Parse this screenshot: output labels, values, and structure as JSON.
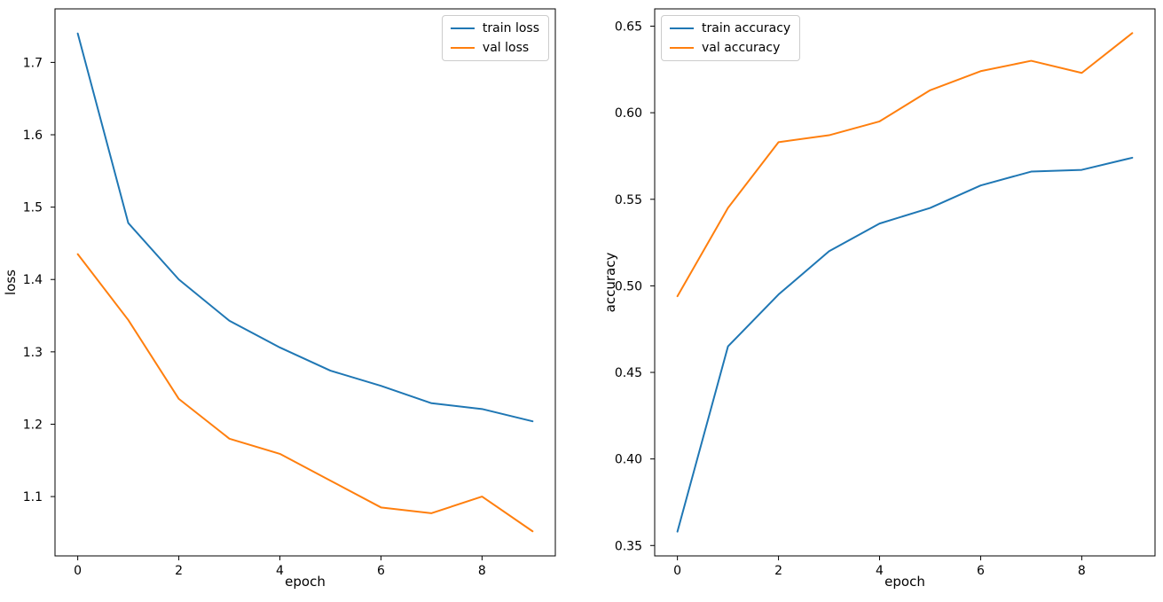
{
  "figure": {
    "background": "#ffffff",
    "text_color": "#000000",
    "spine_color": "#000000"
  },
  "chart_data": [
    {
      "type": "line",
      "title": "",
      "xlabel": "epoch",
      "ylabel": "loss",
      "x": [
        0,
        1,
        2,
        3,
        4,
        5,
        6,
        7,
        8,
        9
      ],
      "series": [
        {
          "name": "train loss",
          "color": "#1f77b4",
          "values": [
            1.74,
            1.478,
            1.4,
            1.343,
            1.306,
            1.274,
            1.253,
            1.229,
            1.221,
            1.204
          ]
        },
        {
          "name": "val loss",
          "color": "#ff7f0e",
          "values": [
            1.435,
            1.344,
            1.235,
            1.18,
            1.159,
            1.122,
            1.085,
            1.077,
            1.1,
            1.052
          ]
        }
      ],
      "xlim": [
        -0.45,
        9.45
      ],
      "ylim": [
        1.018,
        1.774
      ],
      "xticks": [
        0,
        2,
        4,
        6,
        8
      ],
      "xtick_labels": [
        "0",
        "2",
        "4",
        "6",
        "8"
      ],
      "yticks": [
        1.1,
        1.2,
        1.3,
        1.4,
        1.5,
        1.6,
        1.7
      ],
      "ytick_labels": [
        "1.1",
        "1.2",
        "1.3",
        "1.4",
        "1.5",
        "1.6",
        "1.7"
      ],
      "grid": false,
      "legend_position": "upper-right"
    },
    {
      "type": "line",
      "title": "",
      "xlabel": "epoch",
      "ylabel": "accuracy",
      "x": [
        0,
        1,
        2,
        3,
        4,
        5,
        6,
        7,
        8,
        9
      ],
      "series": [
        {
          "name": "train accuracy",
          "color": "#1f77b4",
          "values": [
            0.358,
            0.465,
            0.495,
            0.52,
            0.536,
            0.545,
            0.558,
            0.566,
            0.567,
            0.574
          ]
        },
        {
          "name": "val accuracy",
          "color": "#ff7f0e",
          "values": [
            0.494,
            0.545,
            0.583,
            0.587,
            0.595,
            0.613,
            0.624,
            0.63,
            0.623,
            0.646
          ]
        }
      ],
      "xlim": [
        -0.45,
        9.45
      ],
      "ylim": [
        0.344,
        0.66
      ],
      "xticks": [
        0,
        2,
        4,
        6,
        8
      ],
      "xtick_labels": [
        "0",
        "2",
        "4",
        "6",
        "8"
      ],
      "yticks": [
        0.35,
        0.4,
        0.45,
        0.5,
        0.55,
        0.6,
        0.65
      ],
      "ytick_labels": [
        "0.35",
        "0.40",
        "0.45",
        "0.50",
        "0.55",
        "0.60",
        "0.65"
      ],
      "grid": false,
      "legend_position": "upper-left"
    }
  ]
}
